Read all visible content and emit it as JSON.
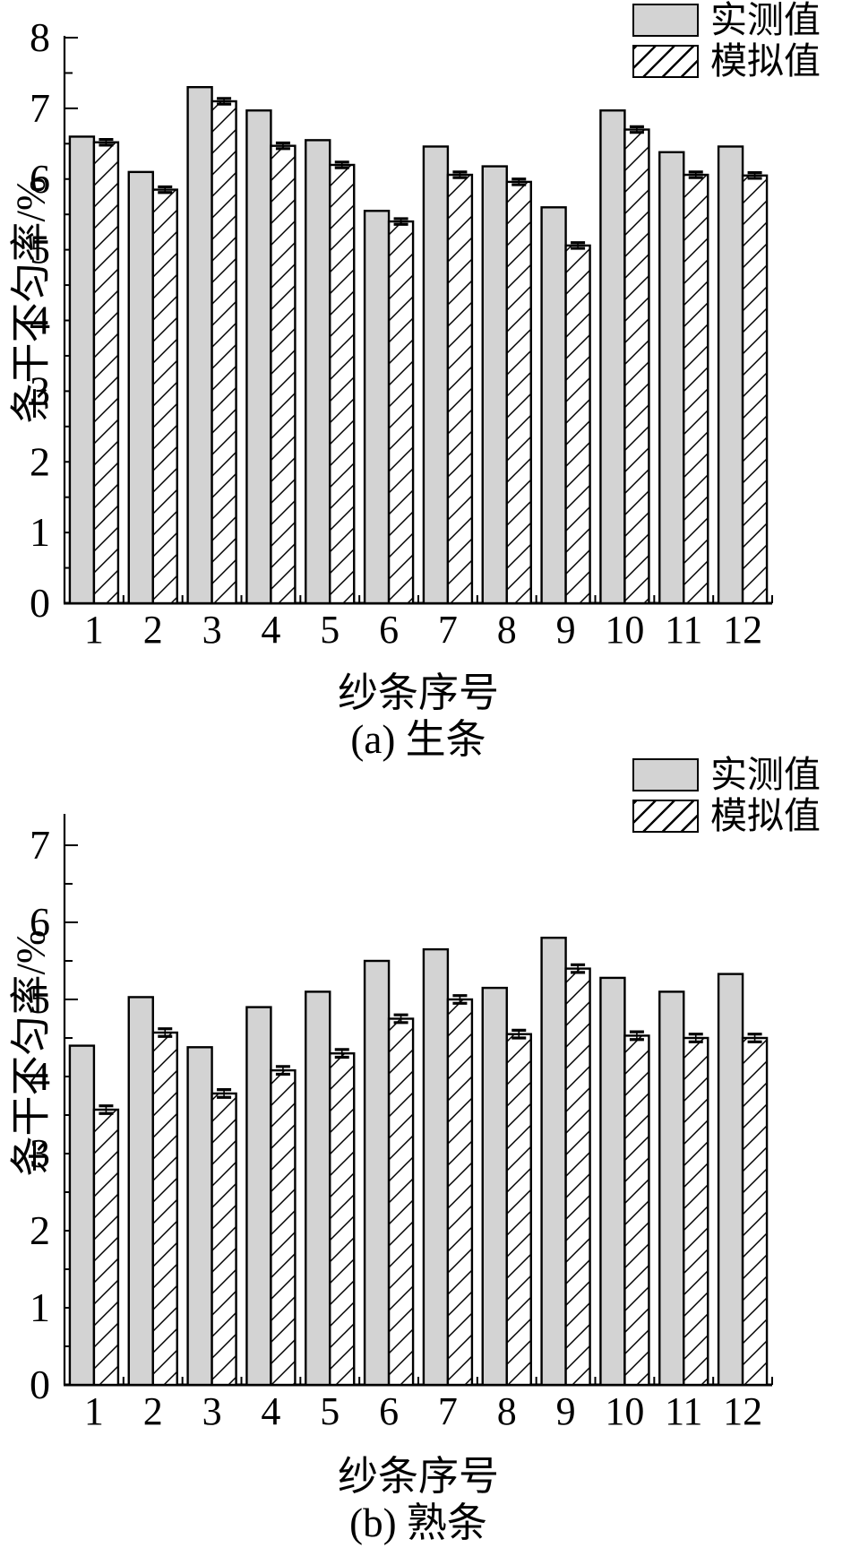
{
  "legend": {
    "measured": "实测值",
    "simulated": "模拟值"
  },
  "colors": {
    "measured_fill": "#d3d3d3",
    "simulated_fill": "#ffffff",
    "stroke": "#000000",
    "background": "#ffffff"
  },
  "chart_data": [
    {
      "type": "bar",
      "title": "(a) 生条",
      "xlabel": "纱条序号",
      "ylabel": "条干不匀率/%",
      "categories": [
        "1",
        "2",
        "3",
        "4",
        "5",
        "6",
        "7",
        "8",
        "9",
        "10",
        "11",
        "12"
      ],
      "series": [
        {
          "name": "实测值",
          "style": "solid-gray",
          "values": [
            6.6,
            6.1,
            7.3,
            6.97,
            6.55,
            5.55,
            6.46,
            6.18,
            5.6,
            6.97,
            6.38,
            6.46
          ]
        },
        {
          "name": "模拟值",
          "style": "hatched",
          "error": 0.04,
          "values": [
            6.52,
            5.85,
            7.1,
            6.47,
            6.2,
            5.4,
            6.06,
            5.96,
            5.06,
            6.7,
            6.06,
            6.05
          ]
        }
      ],
      "ylim": [
        0,
        8
      ],
      "ytick_step": 1,
      "ytick_minor_step": 0.5,
      "grid": false,
      "legend_position": "top-right"
    },
    {
      "type": "bar",
      "title": "(b) 熟条",
      "xlabel": "纱条序号",
      "ylabel": "条干不匀率/%",
      "categories": [
        "1",
        "2",
        "3",
        "4",
        "5",
        "6",
        "7",
        "8",
        "9",
        "10",
        "11",
        "12"
      ],
      "series": [
        {
          "name": "实测值",
          "style": "solid-gray",
          "values": [
            4.4,
            5.03,
            4.38,
            4.9,
            5.1,
            5.5,
            5.65,
            5.15,
            5.8,
            5.28,
            5.1,
            5.33
          ]
        },
        {
          "name": "模拟值",
          "style": "hatched",
          "error": 0.05,
          "values": [
            3.57,
            4.57,
            3.78,
            4.08,
            4.3,
            4.75,
            5.0,
            4.55,
            5.4,
            4.53,
            4.5,
            4.5
          ]
        }
      ],
      "ylim": [
        0,
        7
      ],
      "ytick_step": 1,
      "ytick_minor_step": 0.5,
      "grid": false,
      "legend_position": "top-right"
    }
  ]
}
